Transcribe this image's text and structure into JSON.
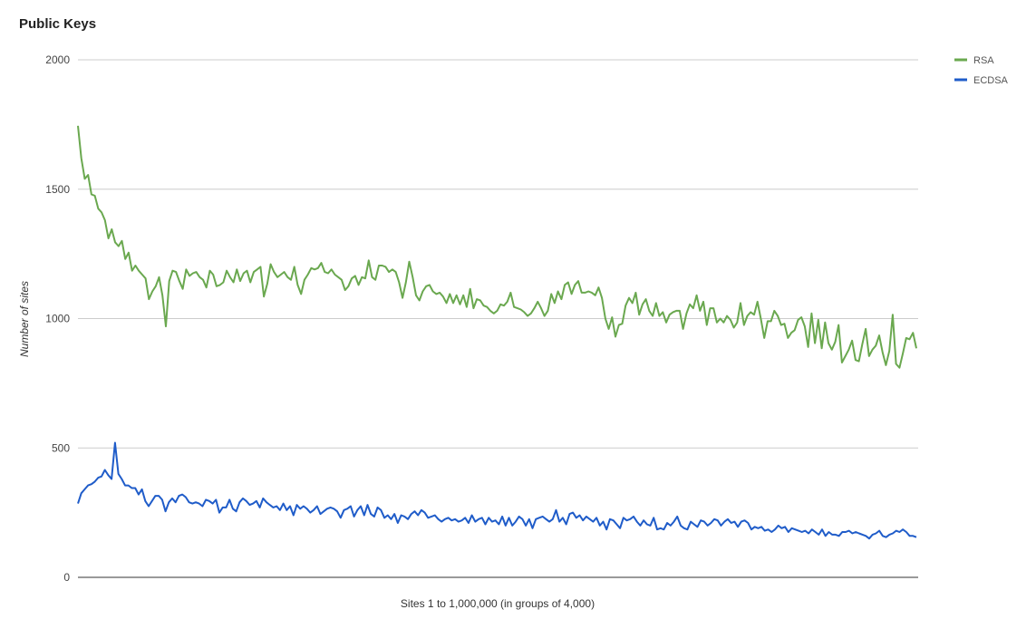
{
  "chart_data": {
    "type": "line",
    "title": "Public Keys",
    "xlabel": "Sites 1 to 1,000,000 (in groups of 4,000)",
    "ylabel": "Number of sites",
    "ylim": [
      0,
      2000
    ],
    "yticks": [
      "0",
      "500",
      "1000",
      "1500",
      "2000"
    ],
    "grid": true,
    "legend_position": "top-right",
    "x": {
      "start": 1,
      "end": 250,
      "step": 1
    },
    "series": [
      {
        "name": "RSA",
        "color": "#6aa84f",
        "values": [
          1745,
          1620,
          1540,
          1555,
          1480,
          1475,
          1425,
          1410,
          1380,
          1310,
          1345,
          1295,
          1280,
          1300,
          1230,
          1255,
          1185,
          1205,
          1185,
          1170,
          1155,
          1075,
          1105,
          1125,
          1160,
          1090,
          970,
          1145,
          1185,
          1180,
          1145,
          1115,
          1190,
          1165,
          1175,
          1180,
          1160,
          1150,
          1120,
          1185,
          1170,
          1125,
          1130,
          1140,
          1185,
          1160,
          1140,
          1190,
          1145,
          1175,
          1185,
          1140,
          1180,
          1190,
          1200,
          1085,
          1135,
          1210,
          1180,
          1160,
          1170,
          1180,
          1160,
          1150,
          1200,
          1130,
          1095,
          1150,
          1170,
          1195,
          1190,
          1195,
          1215,
          1180,
          1175,
          1190,
          1170,
          1160,
          1150,
          1110,
          1125,
          1155,
          1165,
          1130,
          1160,
          1155,
          1225,
          1160,
          1150,
          1205,
          1205,
          1200,
          1180,
          1190,
          1180,
          1140,
          1080,
          1140,
          1220,
          1160,
          1090,
          1070,
          1105,
          1125,
          1130,
          1105,
          1095,
          1100,
          1085,
          1060,
          1095,
          1060,
          1090,
          1055,
          1090,
          1045,
          1115,
          1040,
          1075,
          1070,
          1050,
          1045,
          1030,
          1020,
          1030,
          1055,
          1050,
          1065,
          1100,
          1045,
          1040,
          1035,
          1025,
          1010,
          1020,
          1040,
          1065,
          1040,
          1010,
          1030,
          1095,
          1060,
          1105,
          1075,
          1130,
          1140,
          1095,
          1130,
          1145,
          1100,
          1100,
          1105,
          1100,
          1090,
          1120,
          1080,
          1000,
          960,
          1005,
          930,
          975,
          980,
          1050,
          1080,
          1060,
          1100,
          1015,
          1055,
          1075,
          1030,
          1010,
          1060,
          1010,
          1025,
          985,
          1015,
          1025,
          1030,
          1030,
          960,
          1020,
          1055,
          1040,
          1090,
          1030,
          1065,
          975,
          1040,
          1040,
          985,
          1000,
          985,
          1010,
          995,
          965,
          985,
          1060,
          975,
          1010,
          1025,
          1015,
          1065,
          1000,
          925,
          990,
          990,
          1030,
          1010,
          975,
          980,
          925,
          945,
          955,
          995,
          1005,
          970,
          890,
          1020,
          905,
          995,
          885,
          985,
          905,
          880,
          910,
          975,
          830,
          855,
          880,
          915,
          840,
          835,
          900,
          960,
          855,
          880,
          895,
          935,
          870,
          820,
          875,
          1015,
          825,
          810,
          865,
          925,
          920,
          945,
          885
        ]
      },
      {
        "name": "ECDSA",
        "color": "#1f5cc9",
        "values": [
          285,
          325,
          340,
          355,
          360,
          370,
          385,
          390,
          415,
          395,
          380,
          520,
          400,
          380,
          355,
          355,
          345,
          345,
          320,
          340,
          295,
          275,
          295,
          315,
          315,
          300,
          255,
          290,
          305,
          290,
          315,
          320,
          310,
          290,
          285,
          290,
          285,
          275,
          300,
          295,
          285,
          300,
          250,
          270,
          270,
          300,
          265,
          255,
          290,
          305,
          295,
          280,
          285,
          295,
          270,
          305,
          290,
          280,
          270,
          275,
          260,
          285,
          260,
          275,
          240,
          280,
          265,
          275,
          265,
          250,
          260,
          275,
          245,
          255,
          265,
          270,
          265,
          255,
          230,
          260,
          265,
          275,
          235,
          260,
          275,
          240,
          280,
          245,
          235,
          270,
          260,
          230,
          240,
          225,
          245,
          210,
          240,
          235,
          225,
          245,
          255,
          240,
          260,
          250,
          230,
          235,
          240,
          225,
          215,
          225,
          230,
          220,
          225,
          215,
          220,
          230,
          210,
          240,
          215,
          225,
          230,
          205,
          230,
          215,
          220,
          205,
          235,
          200,
          230,
          200,
          215,
          235,
          225,
          200,
          225,
          190,
          225,
          230,
          235,
          225,
          215,
          225,
          260,
          215,
          230,
          205,
          245,
          250,
          230,
          240,
          220,
          235,
          225,
          215,
          230,
          200,
          215,
          185,
          225,
          220,
          205,
          190,
          230,
          220,
          225,
          235,
          215,
          200,
          220,
          205,
          200,
          230,
          185,
          190,
          185,
          210,
          200,
          215,
          235,
          200,
          190,
          185,
          215,
          205,
          195,
          220,
          215,
          200,
          210,
          225,
          220,
          200,
          215,
          225,
          210,
          215,
          195,
          215,
          220,
          210,
          185,
          195,
          190,
          195,
          180,
          185,
          175,
          185,
          200,
          190,
          195,
          175,
          190,
          185,
          180,
          175,
          180,
          170,
          185,
          175,
          165,
          185,
          160,
          175,
          165,
          165,
          160,
          175,
          175,
          180,
          170,
          175,
          170,
          165,
          160,
          150,
          165,
          170,
          180,
          160,
          155,
          165,
          170,
          180,
          175,
          185,
          175,
          160,
          160,
          155
        ]
      }
    ]
  }
}
